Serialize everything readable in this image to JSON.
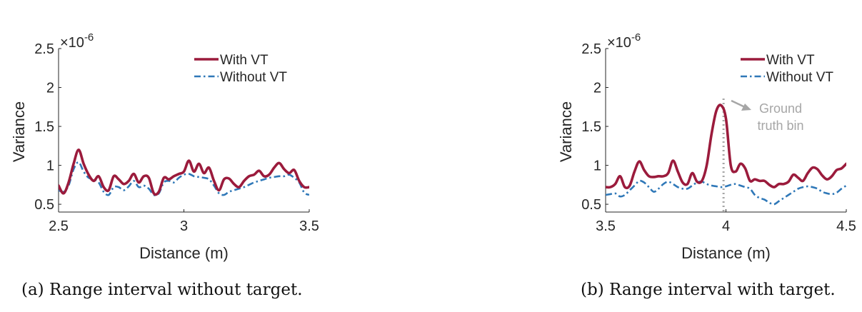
{
  "chart_data": [
    {
      "type": "line",
      "caption": "(a) Range interval without target.",
      "xlabel": "Distance (m)",
      "ylabel": "Variance",
      "exponent_label": "×10",
      "exponent_power": "-6",
      "xlim": [
        2.5,
        3.5
      ],
      "ylim": [
        0.4,
        2.5
      ],
      "xticks": [
        2.5,
        3,
        3.5
      ],
      "xtick_labels": [
        "2.5",
        "3",
        "3.5"
      ],
      "yticks": [
        0.5,
        1,
        1.5,
        2,
        2.5
      ],
      "ytick_labels": [
        "0.5",
        "1",
        "1.5",
        "2",
        "2.5"
      ],
      "legend_position": "top-right",
      "series": [
        {
          "name": "With VT",
          "color": "#9b1b3c",
          "style": "solid",
          "x": [
            2.5,
            2.52,
            2.54,
            2.56,
            2.58,
            2.6,
            2.62,
            2.64,
            2.66,
            2.68,
            2.7,
            2.72,
            2.74,
            2.76,
            2.78,
            2.8,
            2.82,
            2.84,
            2.86,
            2.88,
            2.9,
            2.92,
            2.94,
            2.96,
            2.98,
            3.0,
            3.02,
            3.04,
            3.06,
            3.08,
            3.1,
            3.12,
            3.14,
            3.16,
            3.18,
            3.2,
            3.22,
            3.24,
            3.26,
            3.28,
            3.3,
            3.32,
            3.34,
            3.36,
            3.38,
            3.4,
            3.42,
            3.44,
            3.46,
            3.48,
            3.5
          ],
          "y": [
            0.74,
            0.64,
            0.78,
            1.02,
            1.2,
            1.02,
            0.88,
            0.8,
            0.86,
            0.72,
            0.68,
            0.86,
            0.82,
            0.76,
            0.8,
            0.89,
            0.78,
            0.86,
            0.84,
            0.64,
            0.66,
            0.84,
            0.82,
            0.86,
            0.89,
            0.92,
            1.06,
            0.92,
            1.02,
            0.9,
            0.97,
            0.8,
            0.68,
            0.82,
            0.83,
            0.76,
            0.72,
            0.8,
            0.86,
            0.88,
            0.93,
            0.86,
            0.88,
            0.97,
            1.03,
            0.95,
            0.9,
            0.94,
            0.8,
            0.72,
            0.72
          ]
        },
        {
          "name": "Without VT",
          "color": "#2f78b8",
          "style": "dashdot",
          "x": [
            2.5,
            2.52,
            2.54,
            2.56,
            2.58,
            2.6,
            2.62,
            2.64,
            2.66,
            2.68,
            2.7,
            2.72,
            2.74,
            2.76,
            2.78,
            2.8,
            2.82,
            2.84,
            2.86,
            2.88,
            2.9,
            2.92,
            2.94,
            2.96,
            2.98,
            3.0,
            3.02,
            3.04,
            3.06,
            3.08,
            3.1,
            3.12,
            3.14,
            3.16,
            3.18,
            3.2,
            3.22,
            3.24,
            3.26,
            3.28,
            3.3,
            3.32,
            3.34,
            3.36,
            3.38,
            3.4,
            3.42,
            3.44,
            3.46,
            3.48,
            3.5
          ],
          "y": [
            0.68,
            0.66,
            0.74,
            0.95,
            1.04,
            0.92,
            0.84,
            0.82,
            0.78,
            0.66,
            0.62,
            0.72,
            0.72,
            0.68,
            0.73,
            0.8,
            0.72,
            0.74,
            0.7,
            0.62,
            0.64,
            0.78,
            0.8,
            0.78,
            0.84,
            0.88,
            0.89,
            0.86,
            0.85,
            0.84,
            0.82,
            0.74,
            0.64,
            0.62,
            0.66,
            0.68,
            0.7,
            0.72,
            0.75,
            0.78,
            0.8,
            0.82,
            0.84,
            0.85,
            0.86,
            0.86,
            0.88,
            0.84,
            0.78,
            0.65,
            0.62
          ]
        }
      ]
    },
    {
      "type": "line",
      "caption": "(b) Range interval with target.",
      "xlabel": "Distance (m)",
      "ylabel": "Variance",
      "exponent_label": "×10",
      "exponent_power": "-6",
      "xlim": [
        3.5,
        4.5
      ],
      "ylim": [
        0.4,
        2.5
      ],
      "xticks": [
        3.5,
        4,
        4.5
      ],
      "xtick_labels": [
        "3.5",
        "4",
        "4.5"
      ],
      "yticks": [
        0.5,
        1,
        1.5,
        2,
        2.5
      ],
      "ytick_labels": [
        "0.5",
        "1",
        "1.5",
        "2",
        "2.5"
      ],
      "legend_position": "top-right",
      "annotation": {
        "text_line1": "Ground",
        "text_line2": "truth bin",
        "x": 3.99,
        "color": "#a6a6a6"
      },
      "series": [
        {
          "name": "With VT",
          "color": "#9b1b3c",
          "style": "solid",
          "x": [
            3.5,
            3.52,
            3.54,
            3.56,
            3.58,
            3.6,
            3.62,
            3.64,
            3.66,
            3.68,
            3.7,
            3.72,
            3.74,
            3.76,
            3.78,
            3.8,
            3.82,
            3.84,
            3.86,
            3.88,
            3.9,
            3.92,
            3.94,
            3.96,
            3.98,
            4.0,
            4.02,
            4.04,
            4.06,
            4.08,
            4.1,
            4.12,
            4.14,
            4.16,
            4.18,
            4.2,
            4.22,
            4.24,
            4.26,
            4.28,
            4.3,
            4.32,
            4.34,
            4.36,
            4.38,
            4.4,
            4.42,
            4.44,
            4.46,
            4.48,
            4.5
          ],
          "y": [
            0.72,
            0.72,
            0.76,
            0.86,
            0.72,
            0.74,
            0.92,
            1.05,
            0.94,
            0.86,
            0.85,
            0.86,
            0.86,
            0.9,
            1.06,
            0.92,
            0.78,
            0.76,
            0.9,
            0.79,
            0.8,
            1.0,
            1.4,
            1.7,
            1.77,
            1.6,
            1.0,
            0.92,
            1.02,
            0.96,
            0.8,
            0.82,
            0.8,
            0.8,
            0.75,
            0.72,
            0.76,
            0.76,
            0.79,
            0.88,
            0.84,
            0.8,
            0.9,
            0.97,
            0.95,
            0.87,
            0.82,
            0.86,
            0.94,
            0.96,
            1.02
          ]
        },
        {
          "name": "Without VT",
          "color": "#2f78b8",
          "style": "dashdot",
          "x": [
            3.5,
            3.52,
            3.54,
            3.56,
            3.58,
            3.6,
            3.62,
            3.64,
            3.66,
            3.68,
            3.7,
            3.72,
            3.74,
            3.76,
            3.78,
            3.8,
            3.82,
            3.84,
            3.86,
            3.88,
            3.9,
            3.92,
            3.94,
            3.96,
            3.98,
            4.0,
            4.02,
            4.04,
            4.06,
            4.08,
            4.1,
            4.12,
            4.14,
            4.16,
            4.18,
            4.2,
            4.22,
            4.24,
            4.26,
            4.28,
            4.3,
            4.32,
            4.34,
            4.36,
            4.38,
            4.4,
            4.42,
            4.44,
            4.46,
            4.48,
            4.5
          ],
          "y": [
            0.62,
            0.63,
            0.64,
            0.6,
            0.62,
            0.68,
            0.74,
            0.8,
            0.78,
            0.72,
            0.66,
            0.7,
            0.76,
            0.79,
            0.76,
            0.72,
            0.7,
            0.7,
            0.74,
            0.78,
            0.79,
            0.76,
            0.74,
            0.73,
            0.72,
            0.73,
            0.75,
            0.76,
            0.74,
            0.72,
            0.7,
            0.62,
            0.58,
            0.56,
            0.52,
            0.5,
            0.54,
            0.58,
            0.62,
            0.66,
            0.7,
            0.72,
            0.73,
            0.72,
            0.7,
            0.66,
            0.64,
            0.63,
            0.65,
            0.7,
            0.74
          ]
        }
      ]
    }
  ]
}
